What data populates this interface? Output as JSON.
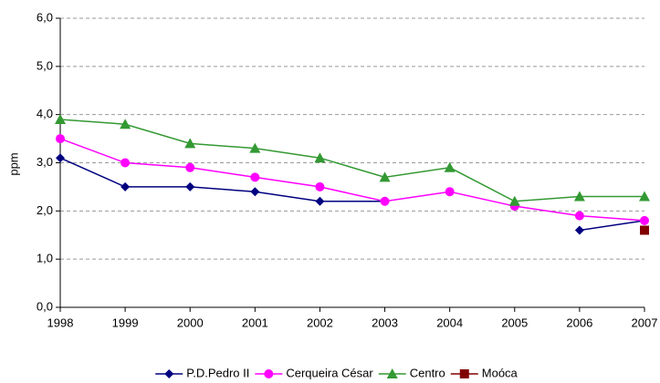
{
  "chart_data": {
    "type": "line",
    "y_label": "ppm",
    "x": [
      1998,
      1999,
      2000,
      2001,
      2002,
      2003,
      2004,
      2005,
      2006,
      2007
    ],
    "xlim": [
      1998,
      2007
    ],
    "xticks": [
      1998,
      1999,
      2000,
      2001,
      2002,
      2003,
      2004,
      2005,
      2006,
      2007
    ],
    "ylim": [
      0,
      6
    ],
    "yticks": [
      {
        "value": 0,
        "label": "0,0"
      },
      {
        "value": 1,
        "label": "1,0"
      },
      {
        "value": 2,
        "label": "2,0"
      },
      {
        "value": 3,
        "label": "3,0"
      },
      {
        "value": 4,
        "label": "4,0"
      },
      {
        "value": 5,
        "label": "5,0"
      },
      {
        "value": 6,
        "label": "6,0"
      }
    ],
    "grid": true,
    "legend": "bottom",
    "series": [
      {
        "name": "P.D.Pedro II",
        "color": "#000080",
        "marker": "diamond",
        "values": [
          3.1,
          2.5,
          2.5,
          2.4,
          2.2,
          2.2,
          null,
          null,
          1.6,
          1.8
        ]
      },
      {
        "name": "Cerqueira César",
        "color": "#ff00ff",
        "marker": "circle",
        "values": [
          3.5,
          3.0,
          2.9,
          2.7,
          2.5,
          2.2,
          2.4,
          2.1,
          1.9,
          1.8
        ]
      },
      {
        "name": "Centro",
        "color": "#339933",
        "marker": "triangle",
        "values": [
          3.9,
          3.8,
          3.4,
          3.3,
          3.1,
          2.7,
          2.9,
          2.2,
          2.3,
          2.3
        ]
      },
      {
        "name": "Moóca",
        "color": "#800000",
        "marker": "square",
        "values": [
          null,
          null,
          null,
          null,
          null,
          null,
          null,
          null,
          null,
          1.6
        ]
      }
    ]
  }
}
